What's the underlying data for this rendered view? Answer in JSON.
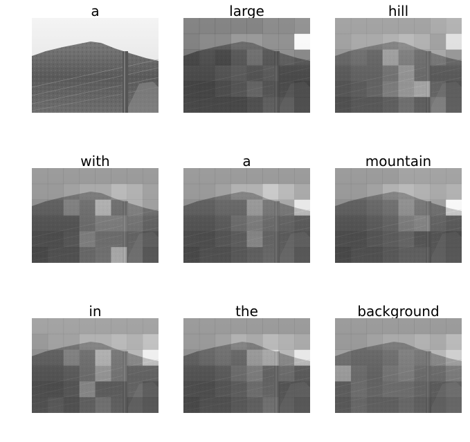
{
  "words": [
    "a",
    "large",
    "hill",
    "with",
    "a",
    "mountain",
    "in",
    "the",
    "background"
  ],
  "attention_grid": {
    "rows": 6,
    "cols": 8
  },
  "panels": [
    {
      "word": "a",
      "attention": null
    },
    {
      "word": "large",
      "attention": [
        [
          0.25,
          0.25,
          0.25,
          0.25,
          0.25,
          0.3,
          0.3,
          0.35
        ],
        [
          0.25,
          0.3,
          0.3,
          0.4,
          0.4,
          0.35,
          0.35,
          1.0
        ],
        [
          0.2,
          0.25,
          0.2,
          0.3,
          0.45,
          0.3,
          0.35,
          0.3
        ],
        [
          0.25,
          0.25,
          0.3,
          0.35,
          0.3,
          0.35,
          0.25,
          0.25
        ],
        [
          0.2,
          0.2,
          0.25,
          0.3,
          0.4,
          0.3,
          0.25,
          0.2
        ],
        [
          0.2,
          0.2,
          0.2,
          0.2,
          0.25,
          0.35,
          0.3,
          0.2
        ]
      ]
    },
    {
      "word": "hill",
      "attention": [
        [
          0.45,
          0.45,
          0.45,
          0.45,
          0.45,
          0.45,
          0.5,
          0.55
        ],
        [
          0.45,
          0.5,
          0.5,
          0.55,
          0.6,
          0.55,
          0.45,
          0.85
        ],
        [
          0.4,
          0.45,
          0.4,
          0.75,
          0.55,
          0.45,
          0.5,
          0.4
        ],
        [
          0.35,
          0.4,
          0.4,
          0.5,
          0.7,
          0.45,
          0.35,
          0.35
        ],
        [
          0.3,
          0.35,
          0.4,
          0.55,
          0.7,
          0.8,
          0.4,
          0.3
        ],
        [
          0.25,
          0.3,
          0.3,
          0.35,
          0.45,
          0.35,
          0.5,
          0.3
        ]
      ]
    },
    {
      "word": "with",
      "attention": [
        [
          0.4,
          0.4,
          0.4,
          0.4,
          0.4,
          0.4,
          0.4,
          0.4
        ],
        [
          0.4,
          0.4,
          0.45,
          0.5,
          0.5,
          0.6,
          0.55,
          0.45
        ],
        [
          0.35,
          0.35,
          0.55,
          0.45,
          0.85,
          0.45,
          0.55,
          0.45
        ],
        [
          0.3,
          0.3,
          0.3,
          0.45,
          0.55,
          0.55,
          0.5,
          0.4
        ],
        [
          0.25,
          0.25,
          0.3,
          0.55,
          0.45,
          0.45,
          0.4,
          0.3
        ],
        [
          0.2,
          0.25,
          0.25,
          0.4,
          0.45,
          0.8,
          0.4,
          0.25
        ]
      ]
    },
    {
      "word": "a",
      "attention": [
        [
          0.4,
          0.4,
          0.4,
          0.4,
          0.4,
          0.4,
          0.4,
          0.4
        ],
        [
          0.4,
          0.4,
          0.45,
          0.55,
          0.55,
          0.7,
          0.6,
          0.5
        ],
        [
          0.35,
          0.35,
          0.4,
          0.4,
          0.7,
          0.5,
          0.5,
          0.9
        ],
        [
          0.3,
          0.3,
          0.35,
          0.45,
          0.55,
          0.45,
          0.4,
          0.35
        ],
        [
          0.25,
          0.25,
          0.3,
          0.35,
          0.6,
          0.4,
          0.35,
          0.3
        ],
        [
          0.2,
          0.25,
          0.25,
          0.3,
          0.35,
          0.4,
          0.35,
          0.25
        ]
      ]
    },
    {
      "word": "mountain",
      "attention": [
        [
          0.4,
          0.4,
          0.4,
          0.4,
          0.45,
          0.45,
          0.45,
          0.45
        ],
        [
          0.4,
          0.4,
          0.45,
          0.55,
          0.6,
          0.55,
          0.5,
          0.55
        ],
        [
          0.35,
          0.35,
          0.4,
          0.45,
          0.65,
          0.5,
          0.45,
          1.0
        ],
        [
          0.3,
          0.3,
          0.35,
          0.4,
          0.55,
          0.6,
          0.4,
          0.35
        ],
        [
          0.25,
          0.25,
          0.3,
          0.35,
          0.4,
          0.3,
          0.3,
          0.25
        ],
        [
          0.2,
          0.25,
          0.25,
          0.3,
          0.35,
          0.35,
          0.3,
          0.25
        ]
      ]
    },
    {
      "word": "in",
      "attention": [
        [
          0.45,
          0.45,
          0.45,
          0.45,
          0.45,
          0.45,
          0.45,
          0.45
        ],
        [
          0.4,
          0.45,
          0.45,
          0.55,
          0.55,
          0.6,
          0.55,
          0.65
        ],
        [
          0.35,
          0.35,
          0.55,
          0.45,
          0.85,
          0.5,
          0.6,
          0.95
        ],
        [
          0.3,
          0.3,
          0.35,
          0.45,
          0.7,
          0.5,
          0.4,
          0.4
        ],
        [
          0.25,
          0.25,
          0.3,
          0.6,
          0.35,
          0.35,
          0.4,
          0.3
        ],
        [
          0.25,
          0.3,
          0.25,
          0.35,
          0.45,
          0.35,
          0.3,
          0.25
        ]
      ]
    },
    {
      "word": "the",
      "attention": [
        [
          0.4,
          0.4,
          0.4,
          0.4,
          0.4,
          0.4,
          0.4,
          0.4
        ],
        [
          0.4,
          0.4,
          0.45,
          0.55,
          0.5,
          0.6,
          0.55,
          0.5
        ],
        [
          0.35,
          0.4,
          0.45,
          0.4,
          0.7,
          0.8,
          0.6,
          0.9
        ],
        [
          0.3,
          0.3,
          0.35,
          0.45,
          0.55,
          0.4,
          0.45,
          0.35
        ],
        [
          0.25,
          0.25,
          0.3,
          0.35,
          0.45,
          0.4,
          0.3,
          0.3
        ],
        [
          0.2,
          0.25,
          0.25,
          0.3,
          0.35,
          0.45,
          0.3,
          0.25
        ]
      ]
    },
    {
      "word": "background",
      "attention": [
        [
          0.4,
          0.4,
          0.4,
          0.4,
          0.4,
          0.4,
          0.4,
          0.4
        ],
        [
          0.4,
          0.4,
          0.45,
          0.5,
          0.5,
          0.55,
          0.5,
          0.6
        ],
        [
          0.45,
          0.4,
          0.4,
          0.45,
          0.55,
          0.5,
          0.6,
          0.75
        ],
        [
          0.75,
          0.45,
          0.4,
          0.5,
          0.55,
          0.45,
          0.45,
          0.55
        ],
        [
          0.35,
          0.45,
          0.4,
          0.45,
          0.45,
          0.4,
          0.35,
          0.4
        ],
        [
          0.3,
          0.4,
          0.35,
          0.35,
          0.4,
          0.35,
          0.3,
          0.35
        ]
      ]
    }
  ]
}
